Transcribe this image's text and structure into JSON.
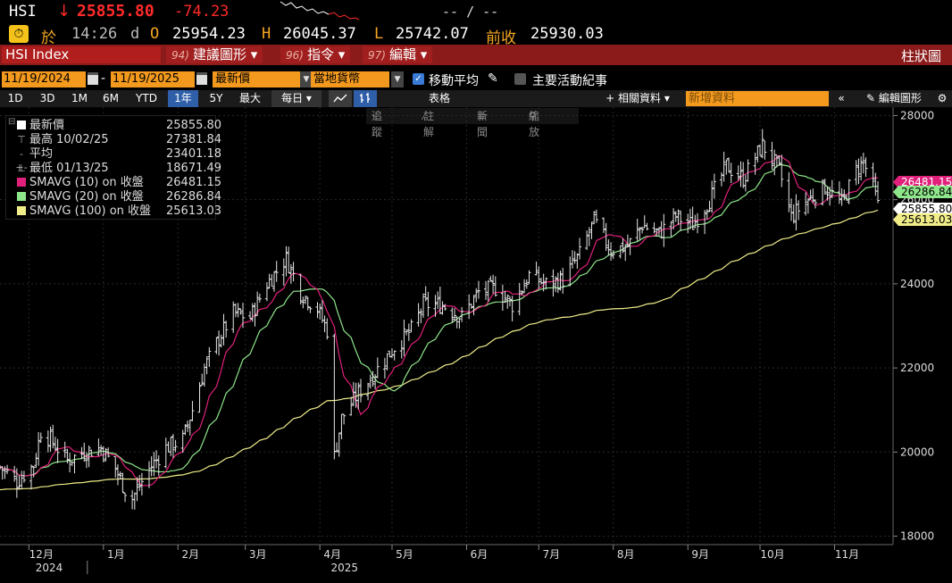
{
  "quote": {
    "symbol": "HSI",
    "direction_arrow": "↓",
    "last": "25855.80",
    "change": "-74.23",
    "time_label": "於",
    "time": "14:26",
    "d_label": "d",
    "open_label": "O",
    "open": "25954.23",
    "high_label": "H",
    "high": "26045.37",
    "low_label": "L",
    "low": "25742.07",
    "prev_label": "前收",
    "prev": "25930.03",
    "slash_text": "-- / --",
    "clock_icon": "clock-icon"
  },
  "cmdbar": {
    "ticker": "HSI Index",
    "items": [
      {
        "num": "94)",
        "label": "建議圖形",
        "arrow": "▾"
      },
      {
        "num": "96)",
        "label": "指令",
        "arrow": "▾"
      },
      {
        "num": "97)",
        "label": "編輯",
        "arrow": "▾"
      }
    ],
    "right_label": "柱狀圖"
  },
  "options": {
    "start_date": "11/19/2024",
    "dash": "-",
    "end_date": "11/19/2025",
    "price_field": "最新價",
    "currency": "當地貨幣",
    "ma_label": "移動平均",
    "ma_checked": true,
    "events_label": "主要活動紀事",
    "events_checked": false
  },
  "periods": {
    "buttons": [
      "1D",
      "3D",
      "1M",
      "6M",
      "YTD",
      "1年",
      "5Y",
      "最大"
    ],
    "selected": "1年",
    "interval": "每日",
    "table_label": "表格",
    "related_label": "相關資料",
    "new_data_placeholder": "新增資料",
    "edit_chart_label": "編輯圖形"
  },
  "subtools": {
    "track": "追蹤",
    "annotate": "註解",
    "news": "新聞",
    "zoom": "縮放"
  },
  "legend": [
    {
      "name": "最新價",
      "value": "25855.80",
      "color": "#ffffff",
      "kind": "swatch"
    },
    {
      "name": "最高 10/02/25",
      "value": "27381.84",
      "color": "#aaaaaa",
      "kind": "high-icon"
    },
    {
      "name": "平均",
      "value": "23401.18",
      "color": "#aaaaaa",
      "kind": "avg-icon"
    },
    {
      "name": "最低 01/13/25",
      "value": "18671.49",
      "color": "#aaaaaa",
      "kind": "low-icon"
    },
    {
      "name": "SMAVG (10)  on 收盤",
      "value": "26481.15",
      "color": "#e0207a",
      "kind": "swatch"
    },
    {
      "name": "SMAVG (20)  on 收盤",
      "value": "26286.84",
      "color": "#8ee68a",
      "kind": "swatch"
    },
    {
      "name": "SMAVG (100)  on 收盤",
      "value": "25613.03",
      "color": "#f1ee8a",
      "kind": "swatch"
    }
  ],
  "chart_data": {
    "type": "bar",
    "y_ticks": [
      18000,
      20000,
      22000,
      24000,
      26000,
      28000
    ],
    "ylim": [
      17800,
      28200
    ],
    "x_month_labels": [
      "12月",
      "1月",
      "2月",
      "3月",
      "4月",
      "5月",
      "6月",
      "7月",
      "8月",
      "9月",
      "10月",
      "11月"
    ],
    "year_labels": [
      "2024",
      "2025"
    ],
    "price_tags": [
      {
        "label": "26481.15",
        "color": "#e0207a",
        "text_color": "#ffffff"
      },
      {
        "label": "26286.84",
        "color": "#8ee68a",
        "text_color": "#000000"
      },
      {
        "label": "25855.80",
        "color": "#ffffff",
        "text_color": "#000000"
      },
      {
        "label": "25613.03",
        "color": "#f1ee8a",
        "text_color": "#000000"
      }
    ],
    "price_path": [
      [
        "2024-11-19",
        19650
      ],
      [
        "2024-11-26",
        19300
      ],
      [
        "2024-12-03",
        19700
      ],
      [
        "2024-12-06",
        20500
      ],
      [
        "2024-12-10",
        20300
      ],
      [
        "2024-12-17",
        19800
      ],
      [
        "2024-12-24",
        20000
      ],
      [
        "2024-12-31",
        20100
      ],
      [
        "2025-01-06",
        19600
      ],
      [
        "2025-01-10",
        19100
      ],
      [
        "2025-01-13",
        18900
      ],
      [
        "2025-01-20",
        19600
      ],
      [
        "2025-01-27",
        20100
      ],
      [
        "2025-02-03",
        20300
      ],
      [
        "2025-02-07",
        21000
      ],
      [
        "2025-02-12",
        22000
      ],
      [
        "2025-02-18",
        22700
      ],
      [
        "2025-02-24",
        23300
      ],
      [
        "2025-03-03",
        23200
      ],
      [
        "2025-03-10",
        24000
      ],
      [
        "2025-03-18",
        24600
      ],
      [
        "2025-03-24",
        23800
      ],
      [
        "2025-03-31",
        23400
      ],
      [
        "2025-04-04",
        22900
      ],
      [
        "2025-04-07",
        19900
      ],
      [
        "2025-04-10",
        20800
      ],
      [
        "2025-04-17",
        21400
      ],
      [
        "2025-04-24",
        21900
      ],
      [
        "2025-05-02",
        22500
      ],
      [
        "2025-05-09",
        22900
      ],
      [
        "2025-05-14",
        23500
      ],
      [
        "2025-05-22",
        23500
      ],
      [
        "2025-05-30",
        23200
      ],
      [
        "2025-06-06",
        23800
      ],
      [
        "2025-06-13",
        23900
      ],
      [
        "2025-06-20",
        23500
      ],
      [
        "2025-06-27",
        24200
      ],
      [
        "2025-07-04",
        24000
      ],
      [
        "2025-07-11",
        24100
      ],
      [
        "2025-07-18",
        24700
      ],
      [
        "2025-07-24",
        25500
      ],
      [
        "2025-07-31",
        24800
      ],
      [
        "2025-08-07",
        24900
      ],
      [
        "2025-08-13",
        25400
      ],
      [
        "2025-08-20",
        25200
      ],
      [
        "2025-08-27",
        25600
      ],
      [
        "2025-09-03",
        25400
      ],
      [
        "2025-09-10",
        26000
      ],
      [
        "2025-09-17",
        26800
      ],
      [
        "2025-09-24",
        26500
      ],
      [
        "2025-10-02",
        27300
      ],
      [
        "2025-10-09",
        26700
      ],
      [
        "2025-10-14",
        25600
      ],
      [
        "2025-10-21",
        26000
      ],
      [
        "2025-10-28",
        26300
      ],
      [
        "2025-11-04",
        25900
      ],
      [
        "2025-11-10",
        26700
      ],
      [
        "2025-11-13",
        26900
      ],
      [
        "2025-11-17",
        26300
      ],
      [
        "2025-11-19",
        25856
      ]
    ],
    "series": [
      {
        "name": "SMAVG (10)  on 收盤",
        "color": "#e0207a",
        "last": 26481.15
      },
      {
        "name": "SMAVG (20)  on 收盤",
        "color": "#8ee68a",
        "last": 26286.84
      },
      {
        "name": "SMAVG (100)  on 收盤",
        "color": "#f1ee8a",
        "last": 25613.03
      }
    ],
    "grid": true
  },
  "spark_color": "#ffffff",
  "spark_down_color": "#ff2a2a"
}
